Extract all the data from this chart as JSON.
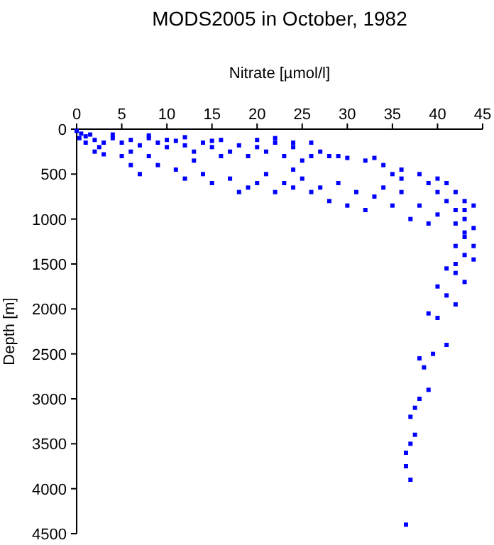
{
  "chart_data": {
    "type": "scatter",
    "title": "MODS2005 in October, 1982",
    "xlabel": "Nitrate [µmol/l]",
    "ylabel": "Depth [m]",
    "xlim": [
      0,
      45
    ],
    "xticks": [
      0,
      5,
      10,
      15,
      20,
      25,
      30,
      35,
      40,
      45
    ],
    "ylim": [
      4500,
      0
    ],
    "yticks": [
      0,
      500,
      1000,
      1500,
      2000,
      2500,
      3000,
      3500,
      4000,
      4500
    ],
    "grid": false,
    "marker": "square",
    "series": [
      {
        "color": "#0000ff",
        "x": [
          0,
          0.5,
          1,
          0.3,
          1.5,
          2,
          3,
          2.5,
          4,
          5,
          6,
          7,
          8,
          9,
          10,
          11,
          12,
          13,
          14,
          15,
          16,
          17,
          18,
          19,
          20,
          21,
          22,
          23,
          24,
          25,
          26,
          27,
          28,
          30,
          32,
          34,
          36,
          38,
          40,
          41,
          42,
          3,
          5,
          6,
          7,
          9,
          11,
          12,
          14,
          15,
          17,
          18,
          19,
          20,
          21,
          22,
          23,
          24,
          25,
          24,
          26,
          27,
          28,
          29,
          30,
          31,
          32,
          33,
          34,
          35,
          36,
          37,
          38,
          39,
          40,
          41,
          42,
          43,
          44,
          43,
          42,
          43,
          44,
          41,
          42,
          43,
          40,
          41,
          42,
          39,
          40,
          41,
          39.5,
          38,
          38.5,
          39,
          38,
          37.5,
          37,
          37.5,
          37,
          36.5,
          36.5,
          37,
          36.5,
          22,
          24,
          10,
          12,
          8,
          4,
          1,
          2,
          26,
          20,
          15,
          16,
          13,
          8,
          6,
          29,
          33,
          35,
          36,
          39,
          40,
          43,
          44,
          42,
          43,
          44,
          42,
          43
        ],
        "values": [
          20,
          50,
          80,
          100,
          60,
          120,
          150,
          200,
          100,
          150,
          120,
          180,
          100,
          150,
          200,
          130,
          180,
          250,
          150,
          200,
          120,
          250,
          180,
          300,
          200,
          250,
          150,
          300,
          200,
          350,
          300,
          250,
          300,
          320,
          350,
          400,
          450,
          500,
          550,
          600,
          700,
          280,
          300,
          400,
          500,
          400,
          450,
          550,
          500,
          600,
          550,
          700,
          650,
          600,
          500,
          700,
          600,
          650,
          550,
          450,
          700,
          650,
          800,
          600,
          850,
          700,
          900,
          750,
          650,
          850,
          700,
          1000,
          850,
          1050,
          950,
          800,
          900,
          1000,
          1100,
          1200,
          1300,
          1400,
          1450,
          1550,
          1600,
          1700,
          1750,
          1850,
          1950,
          2050,
          2100,
          2400,
          2500,
          2550,
          2650,
          2900,
          3000,
          3100,
          3200,
          3400,
          3500,
          3600,
          3750,
          3900,
          4400,
          100,
          150,
          120,
          90,
          70,
          60,
          150,
          250,
          150,
          120,
          130,
          300,
          350,
          300,
          250,
          300,
          320,
          500,
          550,
          600,
          700,
          800,
          850,
          1050,
          900,
          1300,
          1500,
          1150
        ]
      }
    ]
  }
}
